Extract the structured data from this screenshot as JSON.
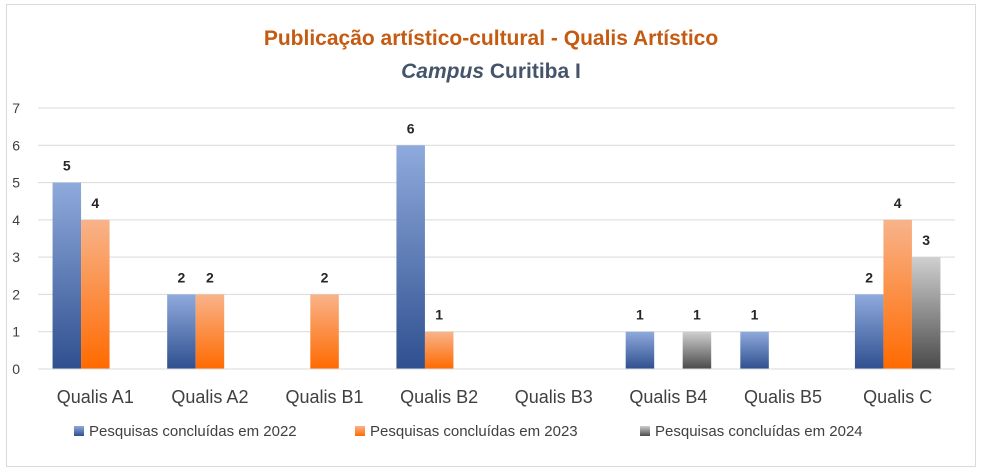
{
  "chart_data": {
    "type": "bar",
    "title": "Publicação artístico-cultural - Qualis Artístico",
    "subtitle_italic": "Campus",
    "subtitle_rest": " Curitiba I",
    "categories": [
      "Qualis A1",
      "Qualis A2",
      "Qualis B1",
      "Qualis B2",
      "Qualis B3",
      "Qualis B4",
      "Qualis B5",
      "Qualis C"
    ],
    "series": [
      {
        "name": "Pesquisas concluídas em 2022",
        "values": [
          5,
          2,
          0,
          6,
          0,
          1,
          1,
          2
        ]
      },
      {
        "name": "Pesquisas concluídas em 2023",
        "values": [
          4,
          2,
          2,
          1,
          0,
          0,
          0,
          4
        ]
      },
      {
        "name": "Pesquisas concluídas em 2024",
        "values": [
          0,
          0,
          0,
          0,
          0,
          1,
          0,
          3
        ]
      }
    ],
    "ylim": [
      0,
      7
    ],
    "yticks": [
      "0",
      "1",
      "2",
      "3",
      "4",
      "5",
      "6",
      "7"
    ],
    "grid": true,
    "legend_position": "bottom",
    "colors": {
      "title": "#c55a11",
      "subtitle": "#44546a",
      "series": [
        {
          "light": "#8faadc",
          "dark": "#2f4f8f"
        },
        {
          "light": "#f8b38a",
          "dark": "#ff6a00"
        },
        {
          "light": "#d0d0d0",
          "dark": "#4a4a4a"
        }
      ]
    }
  }
}
